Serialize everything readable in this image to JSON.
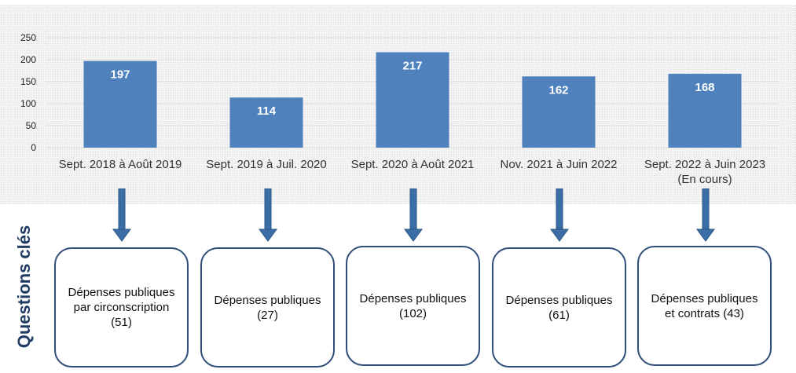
{
  "chart_data": {
    "type": "bar",
    "categories": [
      "Sept. 2018 à Août 2019",
      "Sept. 2019 à Juil. 2020",
      "Sept. 2020 à Août 2021",
      "Nov. 2021 à Juin 2022",
      "Sept. 2022 à Juin 2023"
    ],
    "category_notes": [
      "",
      "",
      "",
      "",
      "(En cours)"
    ],
    "values": [
      197,
      114,
      217,
      162,
      168
    ],
    "ylim": [
      0,
      250
    ],
    "yticks": [
      0,
      50,
      100,
      150,
      200,
      250
    ],
    "grid": true,
    "bar_color": "#4f81bd",
    "data_label_color": "#ffffff"
  },
  "section_label": "Questions clés",
  "boxes": [
    {
      "text": "Dépenses publiques par circonscription (51)"
    },
    {
      "text": "Dépenses publiques (27)"
    },
    {
      "text": "Dépenses publiques (102)"
    },
    {
      "text": "Dépenses publiques (61)"
    },
    {
      "text": "Dépenses publiques et contrats (43)"
    }
  ],
  "colors": {
    "arrow": "#3a6ea5",
    "box_border": "#2f4f7a",
    "label": "#1f3b64"
  }
}
